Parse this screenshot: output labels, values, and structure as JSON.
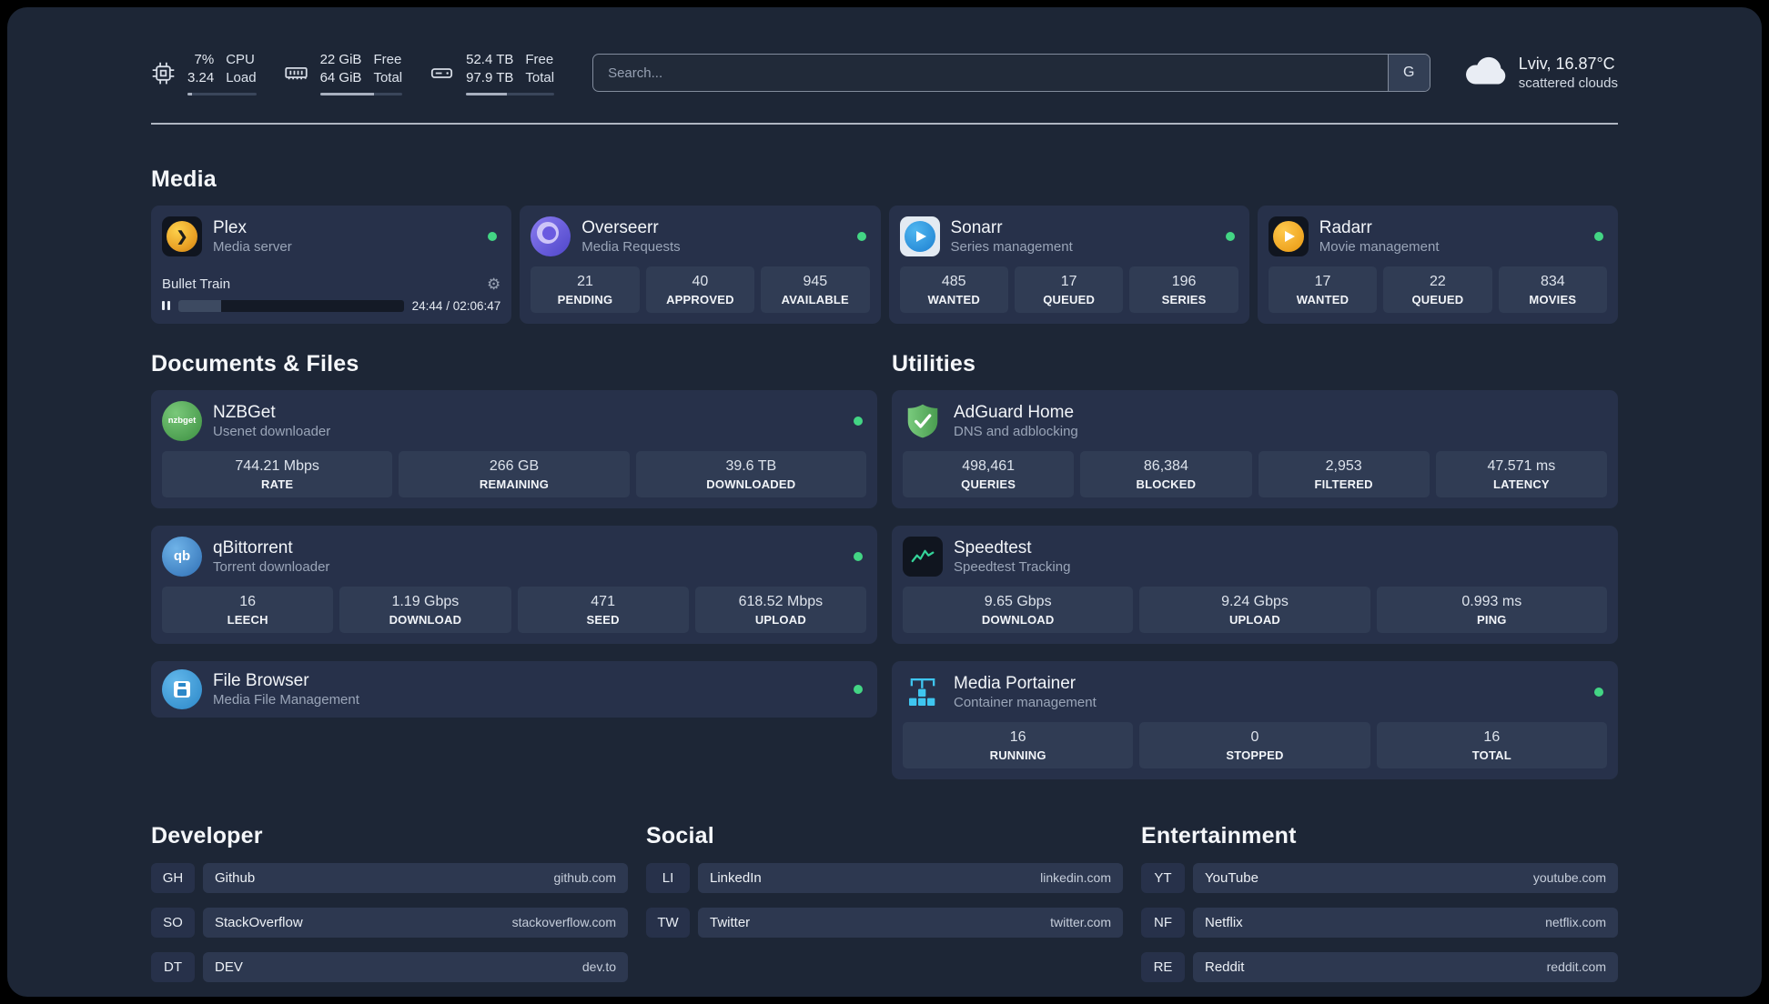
{
  "topbar": {
    "cpu": {
      "value_top": "7%",
      "value_bottom": "3.24",
      "label_top": "CPU",
      "label_bottom": "Load",
      "bar_percent": 7
    },
    "memory": {
      "value_top": "22 GiB",
      "value_bottom": "64 GiB",
      "label_top": "Free",
      "label_bottom": "Total",
      "bar_percent": 66
    },
    "disk": {
      "value_top": "52.4 TB",
      "value_bottom": "97.9 TB",
      "label_top": "Free",
      "label_bottom": "Total",
      "bar_percent": 46
    },
    "search": {
      "placeholder": "Search...",
      "button_label": "G"
    },
    "weather": {
      "location": "Lviv, 16.87°C",
      "condition": "scattered clouds"
    }
  },
  "media": {
    "title": "Media",
    "plex": {
      "name": "Plex",
      "subtitle": "Media server",
      "now_playing": "Bullet Train",
      "time": "24:44 / 02:06:47",
      "progress_percent": 19
    },
    "overseerr": {
      "name": "Overseerr",
      "subtitle": "Media Requests",
      "stats": [
        {
          "value": "21",
          "label": "PENDING"
        },
        {
          "value": "40",
          "label": "APPROVED"
        },
        {
          "value": "945",
          "label": "AVAILABLE"
        }
      ]
    },
    "sonarr": {
      "name": "Sonarr",
      "subtitle": "Series management",
      "stats": [
        {
          "value": "485",
          "label": "WANTED"
        },
        {
          "value": "17",
          "label": "QUEUED"
        },
        {
          "value": "196",
          "label": "SERIES"
        }
      ]
    },
    "radarr": {
      "name": "Radarr",
      "subtitle": "Movie management",
      "stats": [
        {
          "value": "17",
          "label": "WANTED"
        },
        {
          "value": "22",
          "label": "QUEUED"
        },
        {
          "value": "834",
          "label": "MOVIES"
        }
      ]
    }
  },
  "documents": {
    "title": "Documents & Files",
    "nzbget": {
      "name": "NZBGet",
      "subtitle": "Usenet downloader",
      "stats": [
        {
          "value": "744.21 Mbps",
          "label": "RATE"
        },
        {
          "value": "266 GB",
          "label": "REMAINING"
        },
        {
          "value": "39.6 TB",
          "label": "DOWNLOADED"
        }
      ]
    },
    "qbittorrent": {
      "name": "qBittorrent",
      "subtitle": "Torrent downloader",
      "stats": [
        {
          "value": "16",
          "label": "LEECH"
        },
        {
          "value": "1.19 Gbps",
          "label": "DOWNLOAD"
        },
        {
          "value": "471",
          "label": "SEED"
        },
        {
          "value": "618.52 Mbps",
          "label": "UPLOAD"
        }
      ]
    },
    "filebrowser": {
      "name": "File Browser",
      "subtitle": "Media File Management"
    }
  },
  "utilities": {
    "title": "Utilities",
    "adguard": {
      "name": "AdGuard Home",
      "subtitle": "DNS and adblocking",
      "stats": [
        {
          "value": "498,461",
          "label": "QUERIES"
        },
        {
          "value": "86,384",
          "label": "BLOCKED"
        },
        {
          "value": "2,953",
          "label": "FILTERED"
        },
        {
          "value": "47.571 ms",
          "label": "LATENCY"
        }
      ]
    },
    "speedtest": {
      "name": "Speedtest",
      "subtitle": "Speedtest Tracking",
      "stats": [
        {
          "value": "9.65 Gbps",
          "label": "DOWNLOAD"
        },
        {
          "value": "9.24 Gbps",
          "label": "UPLOAD"
        },
        {
          "value": "0.993 ms",
          "label": "PING"
        }
      ]
    },
    "portainer": {
      "name": "Media Portainer",
      "subtitle": "Container management",
      "stats": [
        {
          "value": "16",
          "label": "RUNNING"
        },
        {
          "value": "0",
          "label": "STOPPED"
        },
        {
          "value": "16",
          "label": "TOTAL"
        }
      ]
    }
  },
  "bookmarks": {
    "developer": {
      "title": "Developer",
      "items": [
        {
          "abbr": "GH",
          "name": "Github",
          "url": "github.com"
        },
        {
          "abbr": "SO",
          "name": "StackOverflow",
          "url": "stackoverflow.com"
        },
        {
          "abbr": "DT",
          "name": "DEV",
          "url": "dev.to"
        }
      ]
    },
    "social": {
      "title": "Social",
      "items": [
        {
          "abbr": "LI",
          "name": "LinkedIn",
          "url": "linkedin.com"
        },
        {
          "abbr": "TW",
          "name": "Twitter",
          "url": "twitter.com"
        }
      ]
    },
    "entertainment": {
      "title": "Entertainment",
      "items": [
        {
          "abbr": "YT",
          "name": "YouTube",
          "url": "youtube.com"
        },
        {
          "abbr": "NF",
          "name": "Netflix",
          "url": "netflix.com"
        },
        {
          "abbr": "RE",
          "name": "Reddit",
          "url": "reddit.com"
        }
      ]
    }
  },
  "icons": {
    "plex_glyph": "❯",
    "gear_glyph": "⚙",
    "nzbget_text": "nzbget",
    "qbittorrent_text": "qb"
  },
  "colors": {
    "status_green": "#43d584",
    "background": "#1d2636",
    "card": "#27314a",
    "tile": "#303c54"
  }
}
